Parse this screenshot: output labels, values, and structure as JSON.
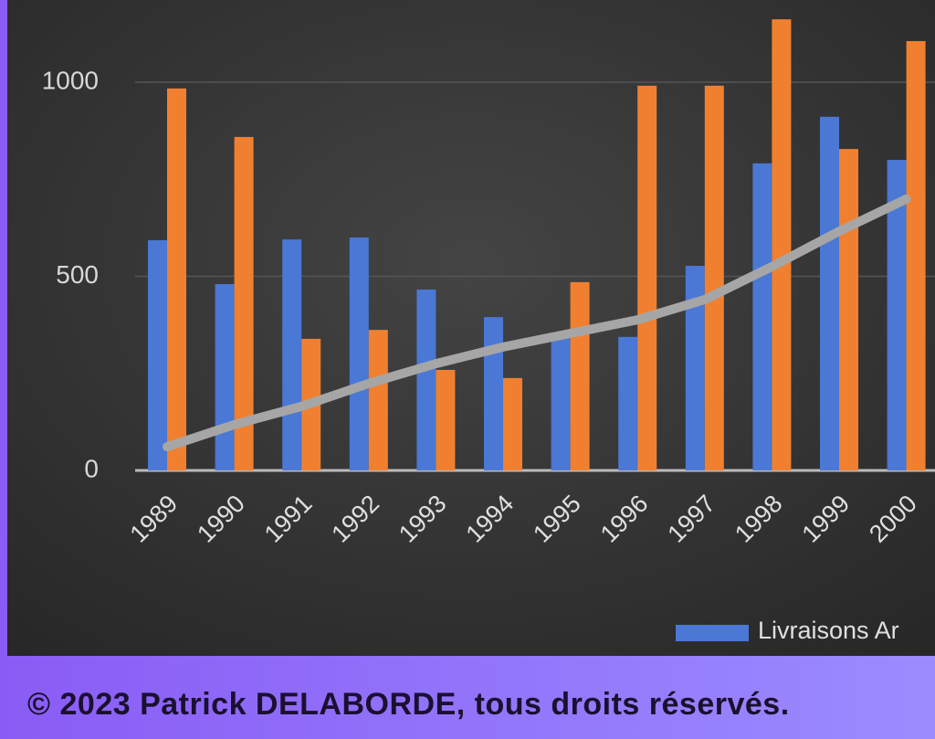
{
  "chart_data": {
    "type": "bar",
    "categories": [
      "1989",
      "1990",
      "1991",
      "1992",
      "1993",
      "1994",
      "1995",
      "1996",
      "1997",
      "1998",
      "1999",
      "2000"
    ],
    "series": [
      {
        "name": "Livraisons Ar",
        "color": "#4a78d4",
        "values": [
          593,
          480,
          595,
          600,
          466,
          395,
          340,
          344,
          527,
          791,
          911,
          800
        ]
      },
      {
        "color": "#f08030",
        "values": [
          984,
          859,
          339,
          362,
          259,
          238,
          485,
          991,
          991,
          1162,
          828,
          1106
        ]
      },
      {
        "type": "line",
        "color": "#a6a6a6",
        "values": [
          61,
          118,
          165,
          224,
          275,
          318,
          353,
          388,
          440,
          525,
          616,
          699
        ]
      }
    ],
    "ylim": [
      0,
      1200
    ],
    "yticks": [
      0,
      500,
      1000
    ],
    "grid": true
  },
  "footer": {
    "copyright": "© 2023 Patrick DELABORDE, tous droits réservés."
  }
}
